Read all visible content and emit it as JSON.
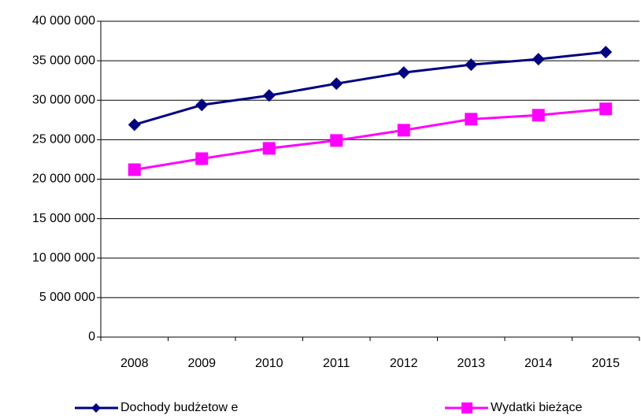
{
  "chart_data": {
    "type": "line",
    "categories": [
      "2008",
      "2009",
      "2010",
      "2011",
      "2012",
      "2013",
      "2014",
      "2015"
    ],
    "series": [
      {
        "name": "Dochody budżetow e",
        "color": "#000080",
        "marker": "diamond",
        "values": [
          26900000,
          29400000,
          30600000,
          32100000,
          33500000,
          34500000,
          35200000,
          36100000
        ]
      },
      {
        "name": "Wydatki bieżące",
        "color": "#ff00ff",
        "marker": "square",
        "values": [
          21200000,
          22600000,
          23900000,
          24900000,
          26200000,
          27600000,
          28100000,
          28900000
        ]
      }
    ],
    "ylim": [
      0,
      40000000
    ],
    "yticks": [
      0,
      {
        "value": 5000000,
        "label": "5 000 000"
      },
      {
        "value": 10000000,
        "label": "10 000 000"
      },
      {
        "value": 15000000,
        "label": "15 000 000"
      },
      {
        "value": 20000000,
        "label": "20 000 000"
      },
      {
        "value": 25000000,
        "label": "25 000 000"
      },
      {
        "value": 30000000,
        "label": "30 000 000"
      },
      {
        "value": 35000000,
        "label": "35 000 000"
      },
      {
        "value": 40000000,
        "label": "40 000 000"
      }
    ],
    "grid": true,
    "legend": "bottom"
  }
}
